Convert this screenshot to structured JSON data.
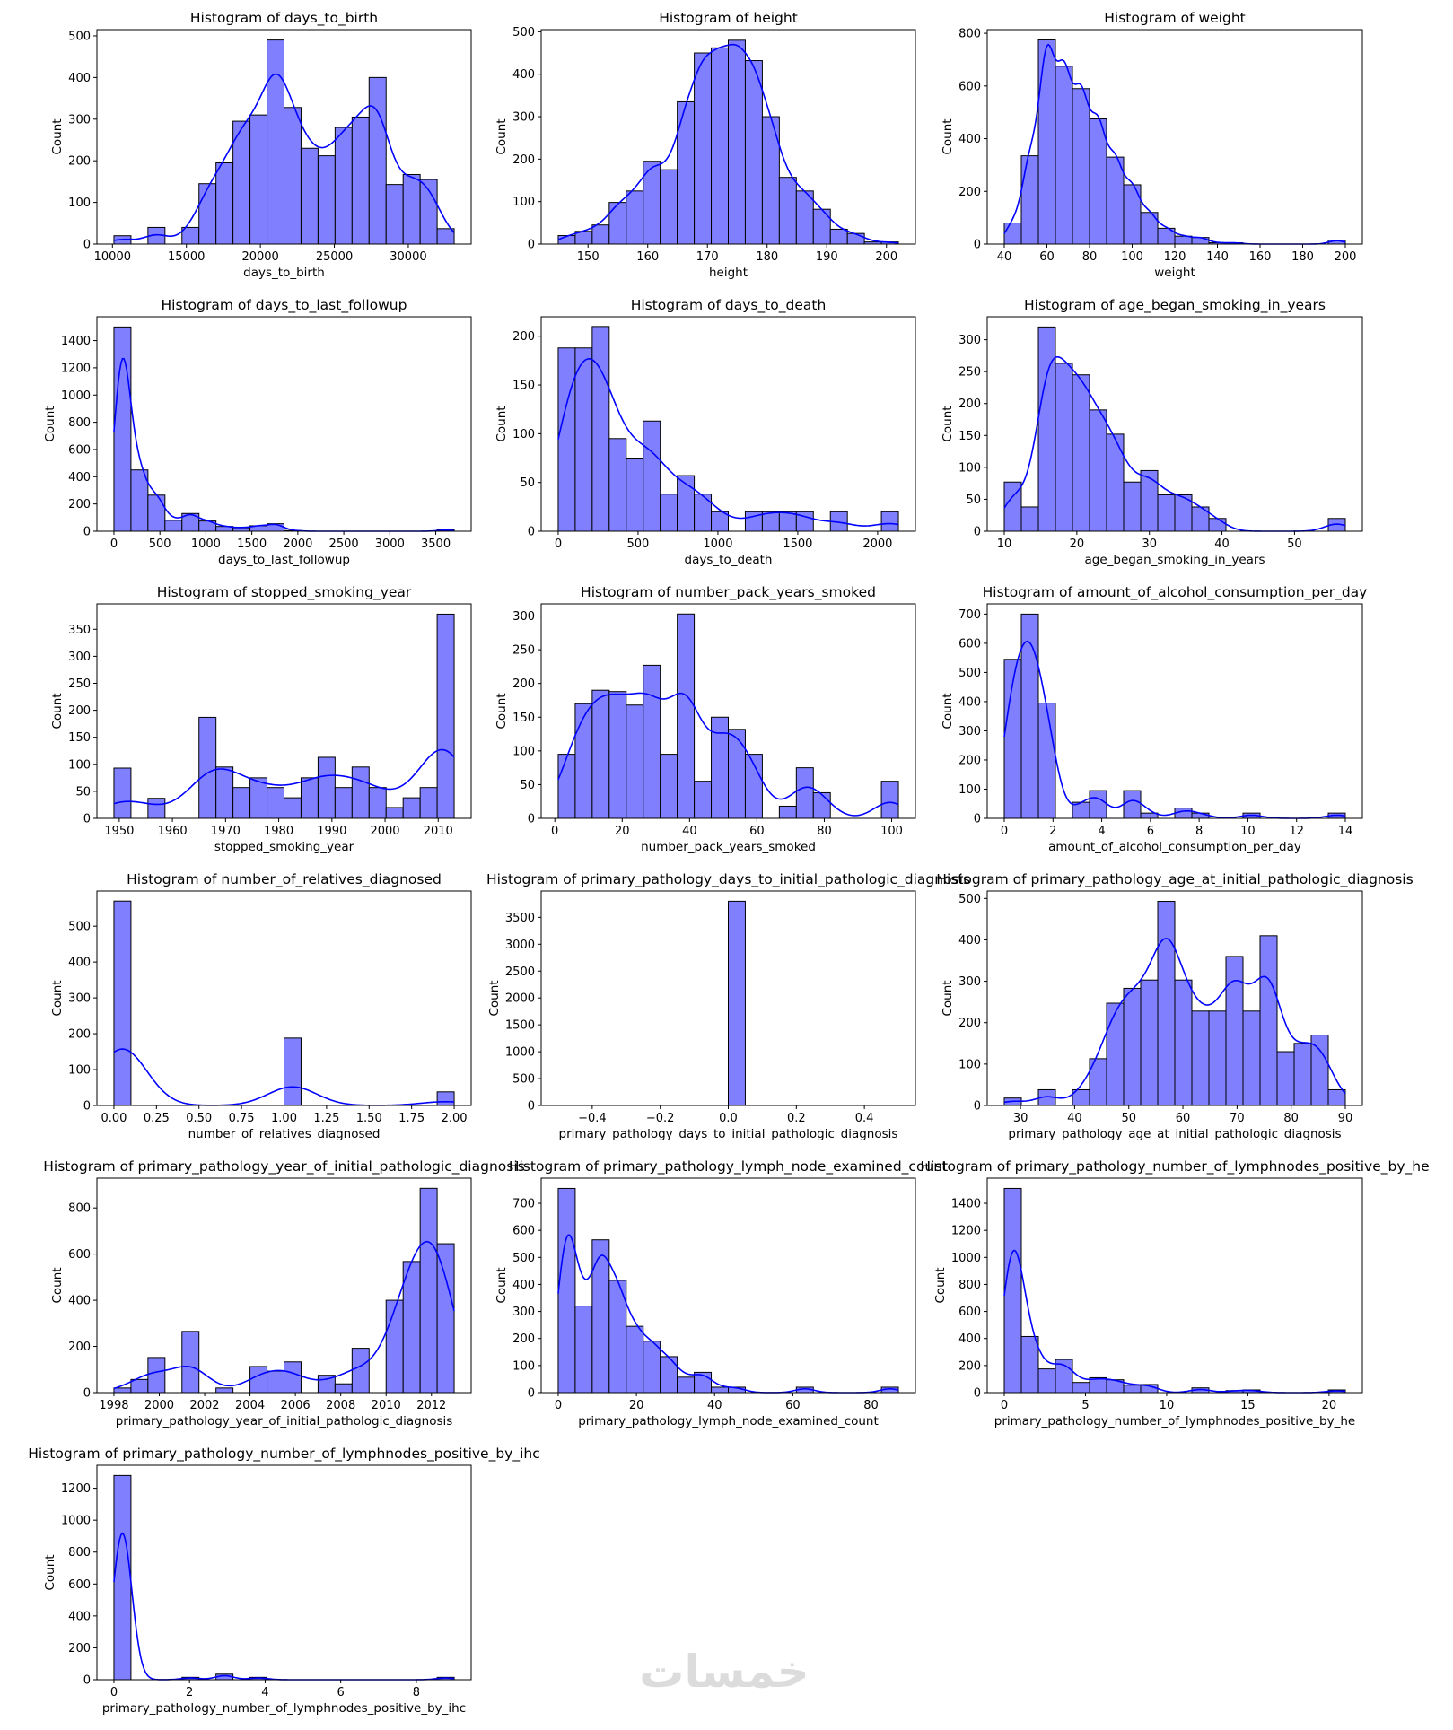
{
  "colors": {
    "bar_fill": "#8080ff",
    "bar_edge": "#000000",
    "kde_line": "#0000ff",
    "watermark": "#dcdcdc"
  },
  "watermark": "خمسات",
  "chart_data": [
    {
      "type": "bar",
      "title": "Histogram of days_to_birth",
      "xlabel": "days_to_birth",
      "ylabel": "Count",
      "bin_start": 10100,
      "bin_width": 1150,
      "counts": [
        20,
        0,
        40,
        0,
        40,
        145,
        195,
        295,
        310,
        490,
        328,
        230,
        212,
        280,
        305,
        400,
        143,
        167,
        155,
        37
      ],
      "xlim": [
        8950,
        34250
      ],
      "ylim": [
        0,
        515
      ],
      "xticks": [
        "10000",
        "15000",
        "20000",
        "25000",
        "30000"
      ],
      "yticks": [
        "0",
        "100",
        "200",
        "300",
        "400",
        "500"
      ],
      "kde": true
    },
    {
      "type": "bar",
      "title": "Histogram of height",
      "xlabel": "height",
      "ylabel": "Count",
      "bin_start": 145,
      "bin_width": 2.85,
      "counts": [
        20,
        30,
        45,
        98,
        125,
        195,
        175,
        335,
        450,
        462,
        480,
        432,
        300,
        157,
        125,
        82,
        35,
        25,
        5,
        5
      ],
      "xlim": [
        142.15,
        204.85
      ],
      "ylim": [
        0,
        505
      ],
      "xticks": [
        "150",
        "160",
        "170",
        "180",
        "190",
        "200"
      ],
      "yticks": [
        "0",
        "100",
        "200",
        "300",
        "400",
        "500"
      ],
      "kde": true
    },
    {
      "type": "bar",
      "title": "Histogram of weight",
      "xlabel": "weight",
      "ylabel": "Count",
      "bin_start": 40,
      "bin_width": 8,
      "counts": [
        80,
        335,
        775,
        675,
        590,
        475,
        330,
        225,
        120,
        60,
        30,
        25,
        5,
        5,
        0,
        0,
        0,
        0,
        0,
        15
      ],
      "xlim": [
        32,
        208
      ],
      "ylim": [
        0,
        814
      ],
      "xticks": [
        "40",
        "60",
        "80",
        "100",
        "120",
        "140",
        "160",
        "180",
        "200"
      ],
      "yticks": [
        "0",
        "200",
        "400",
        "600",
        "800"
      ],
      "kde": true
    },
    {
      "type": "bar",
      "title": "Histogram of days_to_last_followup",
      "xlabel": "days_to_last_followup",
      "ylabel": "Count",
      "bin_start": 0,
      "bin_width": 185,
      "counts": [
        1500,
        450,
        265,
        80,
        130,
        75,
        35,
        25,
        40,
        55,
        5,
        0,
        0,
        0,
        0,
        0,
        0,
        0,
        0,
        10
      ],
      "xlim": [
        -185,
        3885
      ],
      "ylim": [
        0,
        1575
      ],
      "xticks": [
        "0",
        "500",
        "1000",
        "1500",
        "2000",
        "2500",
        "3000",
        "3500"
      ],
      "yticks": [
        "0",
        "200",
        "400",
        "600",
        "800",
        "1000",
        "1200",
        "1400"
      ],
      "kde": true
    },
    {
      "type": "bar",
      "title": "Histogram of days_to_death",
      "xlabel": "days_to_death",
      "ylabel": "Count",
      "bin_start": 0,
      "bin_width": 106.5,
      "counts": [
        188,
        188,
        210,
        95,
        75,
        113,
        38,
        57,
        38,
        20,
        0,
        20,
        20,
        20,
        20,
        0,
        20,
        0,
        0,
        20
      ],
      "xlim": [
        -106.5,
        2236.5
      ],
      "ylim": [
        0,
        220
      ],
      "xticks": [
        "0",
        "500",
        "1000",
        "1500",
        "2000"
      ],
      "yticks": [
        "0",
        "50",
        "100",
        "150",
        "200"
      ],
      "kde": true
    },
    {
      "type": "bar",
      "title": "Histogram of age_began_smoking_in_years",
      "xlabel": "age_began_smoking_in_years",
      "ylabel": "Count",
      "bin_start": 10,
      "bin_width": 2.35,
      "counts": [
        77,
        38,
        320,
        263,
        245,
        190,
        152,
        77,
        95,
        57,
        57,
        38,
        20,
        0,
        0,
        0,
        0,
        0,
        0,
        20
      ],
      "xlim": [
        7.65,
        59.35
      ],
      "ylim": [
        0,
        336
      ],
      "xticks": [
        "10",
        "20",
        "30",
        "40",
        "50"
      ],
      "yticks": [
        "0",
        "50",
        "100",
        "150",
        "200",
        "250",
        "300"
      ],
      "kde": true
    },
    {
      "type": "bar",
      "title": "Histogram of stopped_smoking_year",
      "xlabel": "stopped_smoking_year",
      "ylabel": "Count",
      "bin_start": 1949,
      "bin_width": 3.2,
      "counts": [
        93,
        0,
        37,
        0,
        0,
        187,
        95,
        57,
        75,
        57,
        38,
        75,
        113,
        57,
        95,
        57,
        20,
        38,
        57,
        378
      ],
      "xlim": [
        1945.8,
        2016.2
      ],
      "ylim": [
        0,
        397
      ],
      "xticks": [
        "1950",
        "1960",
        "1970",
        "1980",
        "1990",
        "2000",
        "2010"
      ],
      "yticks": [
        "0",
        "50",
        "100",
        "150",
        "200",
        "250",
        "300",
        "350"
      ],
      "kde": true
    },
    {
      "type": "bar",
      "title": "Histogram of number_pack_years_smoked",
      "xlabel": "number_pack_years_smoked",
      "ylabel": "Count",
      "bin_start": 1,
      "bin_width": 5.05,
      "counts": [
        95,
        170,
        190,
        188,
        168,
        227,
        95,
        303,
        55,
        150,
        132,
        95,
        0,
        18,
        75,
        38,
        0,
        0,
        0,
        55
      ],
      "xlim": [
        -4.05,
        107.05
      ],
      "ylim": [
        0,
        318
      ],
      "xticks": [
        "0",
        "20",
        "40",
        "60",
        "80",
        "100"
      ],
      "yticks": [
        "0",
        "50",
        "100",
        "150",
        "200",
        "250",
        "300"
      ],
      "kde": true
    },
    {
      "type": "bar",
      "title": "Histogram of amount_of_alcohol_consumption_per_day",
      "xlabel": "amount_of_alcohol_consumption_per_day",
      "ylabel": "Count",
      "bin_start": 0,
      "bin_width": 0.7,
      "counts": [
        545,
        700,
        395,
        0,
        55,
        95,
        0,
        95,
        18,
        0,
        35,
        18,
        0,
        0,
        18,
        0,
        0,
        0,
        0,
        18
      ],
      "xlim": [
        -0.7,
        14.7
      ],
      "ylim": [
        0,
        735
      ],
      "xticks": [
        "0",
        "2",
        "4",
        "6",
        "8",
        "10",
        "12",
        "14"
      ],
      "yticks": [
        "0",
        "100",
        "200",
        "300",
        "400",
        "500",
        "600",
        "700"
      ],
      "kde": true
    },
    {
      "type": "bar",
      "title": "Histogram of number_of_relatives_diagnosed",
      "xlabel": "number_of_relatives_diagnosed",
      "ylabel": "Count",
      "bin_start": 0,
      "bin_width": 0.1,
      "counts": [
        570,
        0,
        0,
        0,
        0,
        0,
        0,
        0,
        0,
        0,
        188,
        0,
        0,
        0,
        0,
        0,
        0,
        0,
        0,
        38
      ],
      "xlim": [
        -0.1,
        2.1
      ],
      "ylim": [
        0,
        598
      ],
      "xticks": [
        "0.00",
        "0.25",
        "0.50",
        "0.75",
        "1.00",
        "1.25",
        "1.50",
        "1.75",
        "2.00"
      ],
      "yticks": [
        "0",
        "100",
        "200",
        "300",
        "400",
        "500"
      ],
      "kde": true
    },
    {
      "type": "bar",
      "title": "Histogram of primary_pathology_days_to_initial_pathologic_diagnosis",
      "xlabel": "primary_pathology_days_to_initial_pathologic_diagnosis",
      "ylabel": "Count",
      "bin_start": -0.5,
      "bin_width": 0.05,
      "counts": [
        0,
        0,
        0,
        0,
        0,
        0,
        0,
        0,
        0,
        0,
        3800,
        0,
        0,
        0,
        0,
        0,
        0,
        0,
        0,
        0
      ],
      "xlim": [
        -0.55,
        0.55
      ],
      "ylim": [
        0,
        3990
      ],
      "xticks": [
        "−0.4",
        "−0.2",
        "0.0",
        "0.2",
        "0.4"
      ],
      "yticks": [
        "0",
        "500",
        "1000",
        "1500",
        "2000",
        "2500",
        "3000",
        "3500"
      ],
      "kde": false
    },
    {
      "type": "bar",
      "title": "Histogram of primary_pathology_age_at_initial_pathologic_diagnosis",
      "xlabel": "primary_pathology_age_at_initial_pathologic_diagnosis",
      "ylabel": "Count",
      "bin_start": 27,
      "bin_width": 3.15,
      "counts": [
        18,
        0,
        38,
        0,
        38,
        113,
        247,
        283,
        303,
        493,
        303,
        228,
        228,
        360,
        228,
        410,
        130,
        150,
        170,
        38
      ],
      "xlim": [
        23.85,
        93.15
      ],
      "ylim": [
        0,
        518
      ],
      "xticks": [
        "30",
        "40",
        "50",
        "60",
        "70",
        "80",
        "90"
      ],
      "yticks": [
        "0",
        "100",
        "200",
        "300",
        "400",
        "500"
      ],
      "kde": true
    },
    {
      "type": "bar",
      "title": "Histogram of primary_pathology_year_of_initial_pathologic_diagnosis",
      "xlabel": "primary_pathology_year_of_initial_pathologic_diagnosis",
      "ylabel": "Count",
      "bin_start": 1998,
      "bin_width": 0.75,
      "counts": [
        20,
        57,
        152,
        0,
        265,
        0,
        20,
        0,
        113,
        93,
        133,
        0,
        75,
        38,
        192,
        0,
        400,
        568,
        885,
        645
      ],
      "xlim": [
        1997.25,
        2013.75
      ],
      "ylim": [
        0,
        929
      ],
      "xticks": [
        "1998",
        "2000",
        "2002",
        "2004",
        "2006",
        "2008",
        "2010",
        "2012"
      ],
      "yticks": [
        "0",
        "200",
        "400",
        "600",
        "800"
      ],
      "kde": true
    },
    {
      "type": "bar",
      "title": "Histogram of primary_pathology_lymph_node_examined_count",
      "xlabel": "primary_pathology_lymph_node_examined_count",
      "ylabel": "Count",
      "bin_start": 0,
      "bin_width": 4.35,
      "counts": [
        755,
        320,
        565,
        415,
        245,
        190,
        133,
        57,
        75,
        20,
        20,
        0,
        0,
        0,
        20,
        0,
        0,
        0,
        0,
        20
      ],
      "xlim": [
        -4.35,
        91.35
      ],
      "ylim": [
        0,
        793
      ],
      "xticks": [
        "0",
        "20",
        "40",
        "60",
        "80"
      ],
      "yticks": [
        "0",
        "100",
        "200",
        "300",
        "400",
        "500",
        "600",
        "700"
      ],
      "kde": true
    },
    {
      "type": "bar",
      "title": "Histogram of primary_pathology_number_of_lymphnodes_positive_by_he",
      "xlabel": "primary_pathology_number_of_lymphnodes_positive_by_he",
      "ylabel": "Count",
      "bin_start": 0,
      "bin_width": 1.05,
      "counts": [
        1510,
        415,
        175,
        245,
        75,
        110,
        95,
        55,
        60,
        0,
        0,
        35,
        0,
        15,
        20,
        0,
        0,
        0,
        0,
        20
      ],
      "xlim": [
        -1.05,
        22.05
      ],
      "ylim": [
        0,
        1586
      ],
      "xticks": [
        "0",
        "5",
        "10",
        "15",
        "20"
      ],
      "yticks": [
        "0",
        "200",
        "400",
        "600",
        "800",
        "1000",
        "1200",
        "1400"
      ],
      "kde": true
    },
    {
      "type": "bar",
      "title": "Histogram of primary_pathology_number_of_lymphnodes_positive_by_ihc",
      "xlabel": "primary_pathology_number_of_lymphnodes_positive_by_ihc",
      "ylabel": "Count",
      "bin_start": 0,
      "bin_width": 0.45,
      "counts": [
        1280,
        0,
        0,
        0,
        15,
        0,
        35,
        0,
        15,
        0,
        0,
        0,
        0,
        0,
        0,
        0,
        0,
        0,
        0,
        15
      ],
      "xlim": [
        -0.45,
        9.45
      ],
      "ylim": [
        0,
        1344
      ],
      "xticks": [
        "0",
        "2",
        "4",
        "6",
        "8"
      ],
      "yticks": [
        "0",
        "200",
        "400",
        "600",
        "800",
        "1000",
        "1200"
      ],
      "kde": true
    }
  ]
}
